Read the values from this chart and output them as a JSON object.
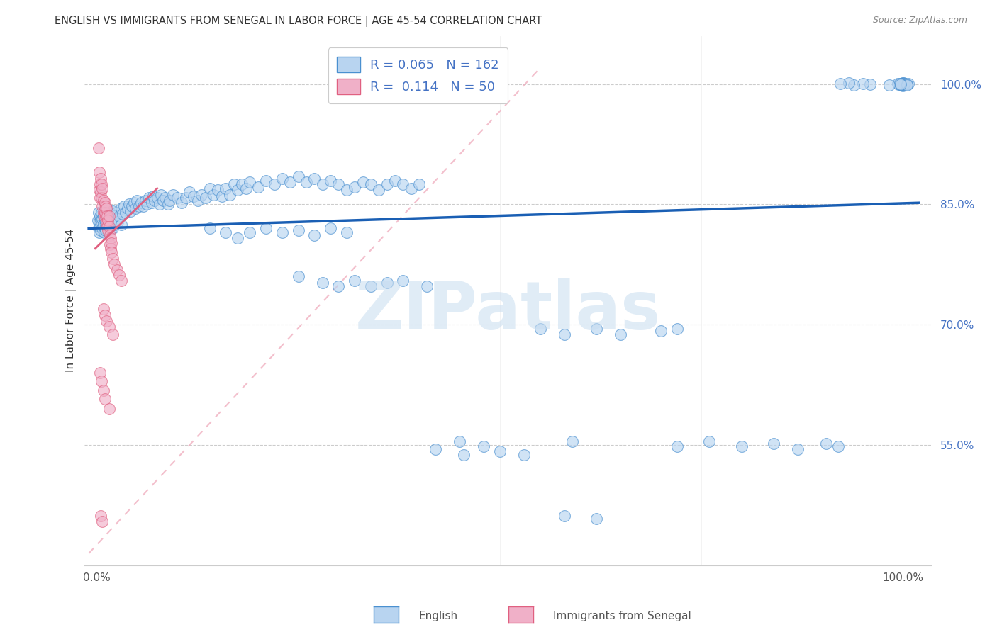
{
  "title": "ENGLISH VS IMMIGRANTS FROM SENEGAL IN LABOR FORCE | AGE 45-54 CORRELATION CHART",
  "source": "Source: ZipAtlas.com",
  "ylabel": "In Labor Force | Age 45-54",
  "ytick_labels": [
    "55.0%",
    "70.0%",
    "85.0%",
    "100.0%"
  ],
  "ytick_values": [
    0.55,
    0.7,
    0.85,
    1.0
  ],
  "legend_r_english": "0.065",
  "legend_n_english": "162",
  "legend_r_senegal": "0.114",
  "legend_n_senegal": "50",
  "color_english_fill": "#b8d4f0",
  "color_english_edge": "#4a90d0",
  "color_senegal_fill": "#f0b0c8",
  "color_senegal_edge": "#e06080",
  "color_trend_english": "#1a5fb4",
  "color_trend_senegal": "#e06080",
  "color_diagonal": "#f0b0c0",
  "watermark": "ZIPatlas",
  "watermark_color": "#c8ddf0",
  "legend_bottom_english": "English",
  "legend_bottom_senegal": "Immigrants from Senegal"
}
